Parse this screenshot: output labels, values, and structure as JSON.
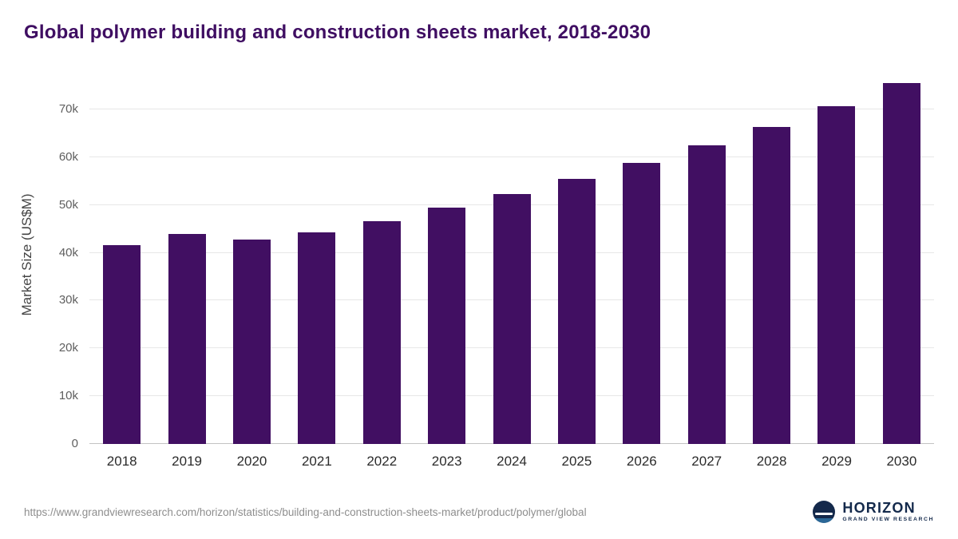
{
  "page": {
    "title": "Global polymer building and construction sheets market, 2018-2030",
    "source_url": "https://www.grandviewresearch.com/horizon/statistics/building-and-construction-sheets-market/product/polymer/global"
  },
  "brand": {
    "name": "HORIZON",
    "subtitle": "GRAND VIEW RESEARCH"
  },
  "colors": {
    "title": "#3F0E62",
    "bar": "#410F62",
    "gridline": "#e7e7e7",
    "axis_text": "#5f5f5f",
    "brand_navy": "#13294B"
  },
  "chart_data": {
    "type": "bar",
    "title": "Global polymer building and construction sheets market, 2018-2030",
    "categories": [
      "2018",
      "2019",
      "2020",
      "2021",
      "2022",
      "2023",
      "2024",
      "2025",
      "2026",
      "2027",
      "2028",
      "2029",
      "2030"
    ],
    "values": [
      41600,
      44000,
      42800,
      44200,
      46600,
      49400,
      52300,
      55500,
      58800,
      62500,
      66300,
      70600,
      75500
    ],
    "xlabel": "",
    "ylabel": "Market Size (US$M)",
    "ylim": [
      0,
      76000
    ],
    "yticks": [
      0,
      10000,
      20000,
      30000,
      40000,
      50000,
      60000,
      70000
    ],
    "ytick_labels": [
      "0",
      "10k",
      "20k",
      "30k",
      "40k",
      "50k",
      "60k",
      "70k"
    ],
    "grid": "horizontal",
    "legend": "none",
    "bar_color": "#410F62"
  }
}
